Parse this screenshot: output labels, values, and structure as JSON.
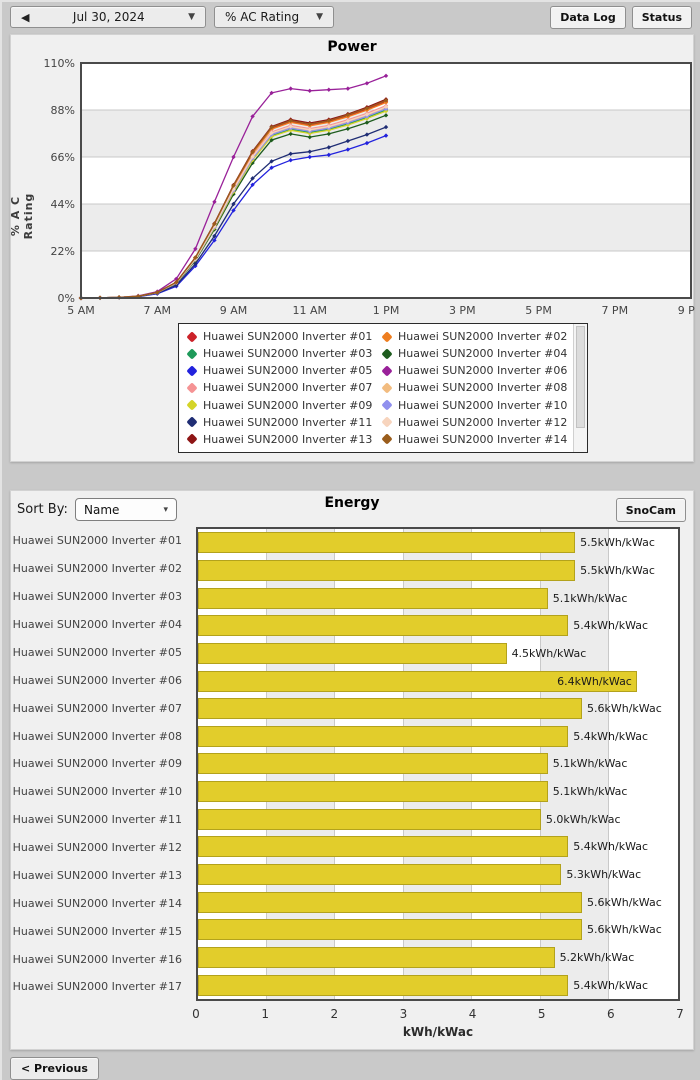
{
  "toolbar": {
    "back_arrow": "◀",
    "date_value": "Jul 30, 2024",
    "metric_value": "% AC Rating",
    "caret": "▼",
    "data_log_label": "Data Log",
    "status_label": "Status"
  },
  "power": {
    "title": "Power",
    "ylabel": "% A C Rating"
  },
  "energy": {
    "sort_by_label": "Sort By:",
    "sort_value": "Name",
    "sort_caret": "▾",
    "title": "Energy",
    "snocam_label": "SnoCam",
    "xlabel": "kWh/kWac"
  },
  "footer": {
    "previous_label": "< Previous"
  },
  "colors": {
    "bar_fill": "#e2cd2b",
    "bar_border": "#b3a21c",
    "band_gray": "#ececec",
    "grid_line": "#c9c9c9",
    "plot_border": "#4a4a4a"
  },
  "chart_data": [
    {
      "type": "line",
      "title": "Power",
      "ylabel": "% AC Rating",
      "ylim": [
        0,
        110
      ],
      "xlim_hours": [
        5,
        21
      ],
      "yticks": [
        0,
        22,
        44,
        66,
        88,
        110
      ],
      "ytick_labels": [
        "0%",
        "22%",
        "44%",
        "66%",
        "88%",
        "110%"
      ],
      "xtick_hours": [
        5,
        7,
        9,
        11,
        13,
        15,
        17,
        19,
        21
      ],
      "xtick_labels": [
        "5 AM",
        "7 AM",
        "9 AM",
        "11 AM",
        "1 PM",
        "3 PM",
        "5 PM",
        "7 PM",
        "9 PM"
      ],
      "x_hours": [
        5,
        5.5,
        6,
        6.5,
        7,
        7.5,
        8,
        8.5,
        9,
        9.5,
        10,
        10.5,
        11,
        11.5,
        12,
        12.5,
        13
      ],
      "grid": "horizontal-bands",
      "legend_position": "below",
      "series": [
        {
          "name": "Huawei SUN2000 Inverter #01",
          "color": "#cc2229",
          "values": [
            0,
            0.1,
            0.3,
            0.8,
            2.6,
            7.3,
            18.8,
            34.5,
            52.3,
            67.9,
            79.4,
            82.6,
            81.0,
            82.6,
            85.2,
            88.3,
            92.0
          ]
        },
        {
          "name": "Huawei SUN2000 Inverter #02",
          "color": "#ee7e20",
          "values": [
            0,
            0.1,
            0.3,
            0.8,
            2.6,
            7.3,
            18.7,
            34.3,
            52.0,
            67.6,
            79.0,
            82.2,
            80.6,
            82.2,
            84.8,
            87.9,
            91.5
          ]
        },
        {
          "name": "Huawei SUN2000 Inverter #03",
          "color": "#1e9a5a",
          "values": [
            0,
            0.1,
            0.3,
            0.8,
            2.5,
            7.0,
            18.0,
            33.0,
            50.0,
            65.0,
            76.0,
            79.0,
            77.5,
            79.0,
            81.5,
            84.5,
            88.0
          ]
        },
        {
          "name": "Huawei SUN2000 Inverter #04",
          "color": "#1e5c1e",
          "values": [
            0,
            0.1,
            0.3,
            0.8,
            2.4,
            6.8,
            17.5,
            32.1,
            48.6,
            63.2,
            73.9,
            76.8,
            75.3,
            76.8,
            79.2,
            82.1,
            85.5
          ]
        },
        {
          "name": "Huawei SUN2000 Inverter #05",
          "color": "#2222dd",
          "values": [
            0,
            0.05,
            0.2,
            0.6,
            2.0,
            5.5,
            15.0,
            27.0,
            41.0,
            53.0,
            61.0,
            64.5,
            66.0,
            67.0,
            69.5,
            72.5,
            76.0
          ]
        },
        {
          "name": "Huawei SUN2000 Inverter #06",
          "color": "#992199",
          "values": [
            0,
            0.1,
            0.3,
            1.0,
            3.0,
            9.0,
            23.0,
            45.0,
            66.0,
            85.0,
            96.0,
            98.0,
            97.0,
            97.5,
            98.0,
            100.5,
            104.0
          ]
        },
        {
          "name": "Huawei SUN2000 Inverter #07",
          "color": "#f59394",
          "values": [
            0,
            0.1,
            0.3,
            0.8,
            2.6,
            7.2,
            18.4,
            33.8,
            51.2,
            66.5,
            77.7,
            80.8,
            79.3,
            80.8,
            83.4,
            86.4,
            90.0
          ]
        },
        {
          "name": "Huawei SUN2000 Inverter #08",
          "color": "#f2bc80",
          "values": [
            0,
            0.1,
            0.3,
            0.8,
            2.5,
            7.1,
            18.2,
            33.4,
            50.6,
            65.7,
            76.8,
            79.9,
            78.4,
            79.9,
            82.4,
            85.4,
            89.0
          ]
        },
        {
          "name": "Huawei SUN2000 Inverter #09",
          "color": "#d4d428",
          "values": [
            0,
            0.1,
            0.3,
            0.8,
            2.5,
            7.0,
            17.9,
            32.8,
            49.7,
            64.6,
            75.6,
            78.5,
            77.0,
            78.5,
            81.0,
            84.0,
            87.5
          ]
        },
        {
          "name": "Huawei SUN2000 Inverter #10",
          "color": "#9090ee",
          "values": [
            0,
            0.1,
            0.3,
            0.8,
            2.5,
            7.0,
            18.1,
            33.2,
            50.3,
            65.4,
            76.5,
            79.5,
            78.0,
            79.5,
            82.0,
            85.0,
            88.5
          ]
        },
        {
          "name": "Huawei SUN2000 Inverter #11",
          "color": "#1f2d74",
          "values": [
            0,
            0.05,
            0.25,
            0.7,
            2.2,
            6.0,
            16.0,
            29.0,
            44.0,
            56.0,
            64.0,
            67.5,
            68.5,
            70.5,
            73.5,
            76.5,
            80.0
          ]
        },
        {
          "name": "Huawei SUN2000 Inverter #12",
          "color": "#f7d4bd",
          "values": [
            0,
            0.1,
            0.3,
            0.8,
            2.5,
            7.1,
            18.3,
            33.6,
            50.9,
            66.1,
            77.3,
            80.3,
            78.8,
            80.3,
            82.9,
            85.9,
            89.5
          ]
        },
        {
          "name": "Huawei SUN2000 Inverter #13",
          "color": "#8e1515",
          "values": [
            0,
            0.1,
            0.3,
            0.8,
            2.6,
            7.4,
            19.0,
            34.9,
            52.9,
            68.7,
            80.3,
            83.5,
            81.9,
            83.5,
            86.1,
            89.3,
            93.0
          ]
        },
        {
          "name": "Huawei SUN2000 Inverter #14",
          "color": "#9a5d1c",
          "values": [
            0,
            0.1,
            0.3,
            0.8,
            2.6,
            7.4,
            18.9,
            34.7,
            52.6,
            68.3,
            79.9,
            83.0,
            81.4,
            83.0,
            85.7,
            88.8,
            92.5
          ]
        }
      ]
    },
    {
      "type": "bar",
      "title": "Energy",
      "orientation": "horizontal",
      "categories": [
        "Huawei SUN2000 Inverter #01",
        "Huawei SUN2000 Inverter #02",
        "Huawei SUN2000 Inverter #03",
        "Huawei SUN2000 Inverter #04",
        "Huawei SUN2000 Inverter #05",
        "Huawei SUN2000 Inverter #06",
        "Huawei SUN2000 Inverter #07",
        "Huawei SUN2000 Inverter #08",
        "Huawei SUN2000 Inverter #09",
        "Huawei SUN2000 Inverter #10",
        "Huawei SUN2000 Inverter #11",
        "Huawei SUN2000 Inverter #12",
        "Huawei SUN2000 Inverter #13",
        "Huawei SUN2000 Inverter #14",
        "Huawei SUN2000 Inverter #15",
        "Huawei SUN2000 Inverter #16",
        "Huawei SUN2000 Inverter #17"
      ],
      "values": [
        5.5,
        5.5,
        5.1,
        5.4,
        4.5,
        6.4,
        5.6,
        5.4,
        5.1,
        5.1,
        5.0,
        5.4,
        5.3,
        5.6,
        5.6,
        5.2,
        5.4
      ],
      "value_label_suffix": "kWh/kWac",
      "xlabel": "kWh/kWac",
      "xlim": [
        0,
        7
      ],
      "xticks": [
        0,
        1,
        2,
        3,
        4,
        5,
        6,
        7
      ],
      "grid": "vertical-bands"
    }
  ]
}
